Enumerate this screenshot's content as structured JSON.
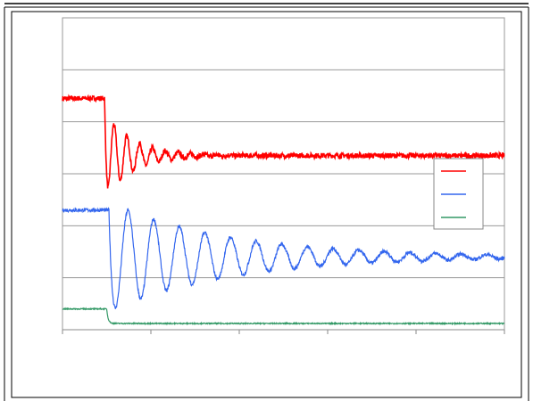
{
  "chart_data": {
    "type": "line",
    "title": "",
    "xlabel": "",
    "ylabel": "",
    "xlim": [
      0,
      100
    ],
    "ylim": [
      0,
      6
    ],
    "grid": true,
    "legend_position": "right",
    "series": [
      {
        "color": "#ff0000",
        "noise": 0.05,
        "step_x": 9.5,
        "y": [
          4.45,
          3.35
        ],
        "osc_amp": 0.85,
        "osc_period": 2.9,
        "osc_decay": 0.16
      },
      {
        "color": "#3366ee",
        "noise": 0.035,
        "step_x": 10.5,
        "y": [
          2.3,
          1.4
        ],
        "osc_amp": 1.05,
        "osc_period": 5.8,
        "osc_decay": 0.037
      },
      {
        "color": "#339966",
        "noise": 0.01,
        "step_x": 10.0,
        "y": [
          0.4,
          0.12
        ],
        "osc_amp": 0.0,
        "osc_period": 1.0,
        "osc_decay": 1.0
      }
    ]
  }
}
